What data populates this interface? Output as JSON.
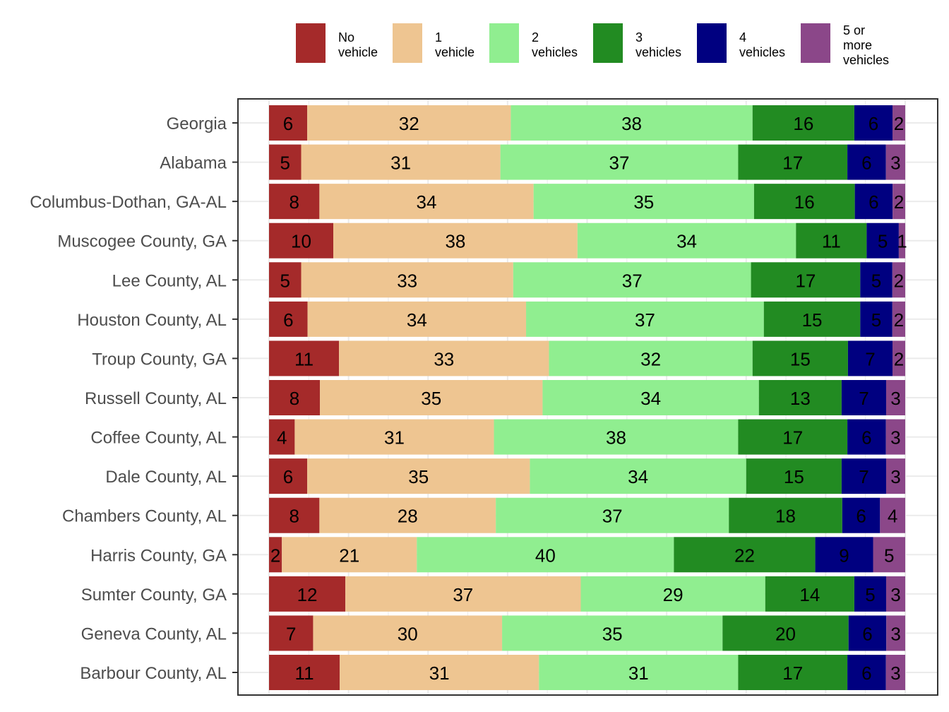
{
  "chart_data": {
    "type": "bar",
    "orientation": "horizontal",
    "stacked": "fill",
    "title": "",
    "xlabel": "",
    "ylabel": "",
    "xlim": [
      0,
      100
    ],
    "grid": true,
    "legend_position": "top",
    "categories": [
      "Georgia",
      "Alabama",
      "Columbus-Dothan,  GA-AL",
      "Muscogee County, GA",
      "Lee County, AL",
      "Houston County, AL",
      "Troup County, GA",
      "Russell County, AL",
      "Coffee County, AL",
      "Dale County, AL",
      "Chambers County, AL",
      "Harris County, GA",
      "Sumter County, GA",
      "Geneva County, AL",
      "Barbour County, AL"
    ],
    "series": [
      {
        "name": "No vehicle",
        "legend_lines": [
          "No",
          "vehicle"
        ],
        "color": "#A52A2A",
        "values": [
          6,
          5,
          8,
          10,
          5,
          6,
          11,
          8,
          4,
          6,
          8,
          2,
          12,
          7,
          11
        ]
      },
      {
        "name": "1 vehicle",
        "legend_lines": [
          "1",
          "vehicle"
        ],
        "color": "#EEC591",
        "values": [
          32,
          31,
          34,
          38,
          33,
          34,
          33,
          35,
          31,
          35,
          28,
          21,
          37,
          30,
          31
        ]
      },
      {
        "name": "2 vehicles",
        "legend_lines": [
          "2",
          "vehicles"
        ],
        "color": "#90EE90",
        "values": [
          38,
          37,
          35,
          34,
          37,
          37,
          32,
          34,
          38,
          34,
          37,
          40,
          29,
          35,
          31
        ]
      },
      {
        "name": "3 vehicles",
        "legend_lines": [
          "3",
          "vehicles"
        ],
        "color": "#228B22",
        "values": [
          16,
          17,
          16,
          11,
          17,
          15,
          15,
          13,
          17,
          15,
          18,
          22,
          14,
          20,
          17
        ]
      },
      {
        "name": "4 vehicles",
        "legend_lines": [
          "4",
          "vehicles"
        ],
        "color": "#000080",
        "values": [
          6,
          6,
          6,
          5,
          5,
          5,
          7,
          7,
          6,
          7,
          6,
          9,
          5,
          6,
          6
        ]
      },
      {
        "name": "5 or more vehicles",
        "legend_lines": [
          "5 or",
          "more",
          "vehicles"
        ],
        "color": "#8B4789",
        "values": [
          2,
          3,
          2,
          1,
          2,
          2,
          2,
          3,
          3,
          3,
          4,
          5,
          3,
          3,
          3
        ]
      }
    ]
  }
}
